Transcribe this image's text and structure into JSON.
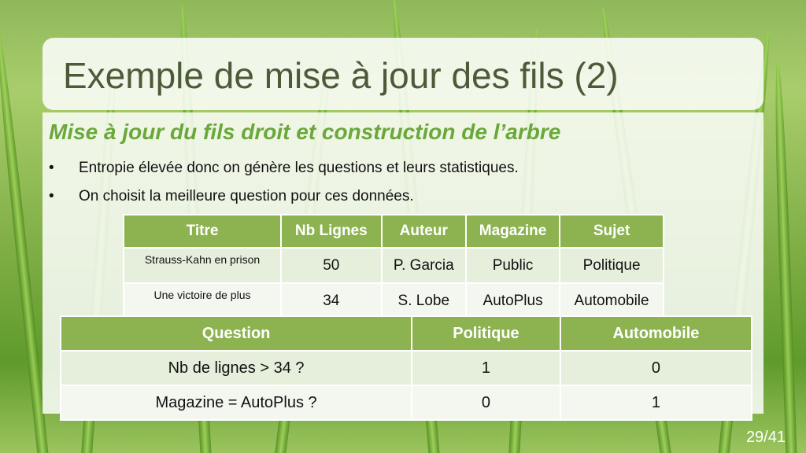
{
  "slide": {
    "title": "Exemple de mise à jour des fils (2)",
    "subtitle": "Mise à jour du fils droit et construction de l’arbre",
    "bullets": [
      "Entropie élevée donc on génère les questions et leurs statistiques.",
      "On choisit la meilleure question pour ces données."
    ],
    "bullet_char": "•",
    "page_number": "29/41"
  },
  "table_data": {
    "headers": [
      "Titre",
      "Nb Lignes",
      "Auteur",
      "Magazine",
      "Sujet"
    ],
    "rows": [
      [
        "Strauss-Kahn en prison",
        "50",
        "P. Garcia",
        "Public",
        "Politique"
      ],
      [
        "Une victoire de plus",
        "34",
        "S. Lobe",
        "AutoPlus",
        "Automobile"
      ]
    ]
  },
  "question_table": {
    "headers": [
      "Question",
      "Politique",
      "Automobile"
    ],
    "rows": [
      [
        "Nb de lignes > 34 ?",
        "1",
        "0"
      ],
      [
        "Magazine = AutoPlus ?",
        "0",
        "1"
      ]
    ]
  },
  "colors": {
    "header_green": "#8db351",
    "subtitle_green": "#6aa83a",
    "title_gray": "#4d5a3a"
  }
}
